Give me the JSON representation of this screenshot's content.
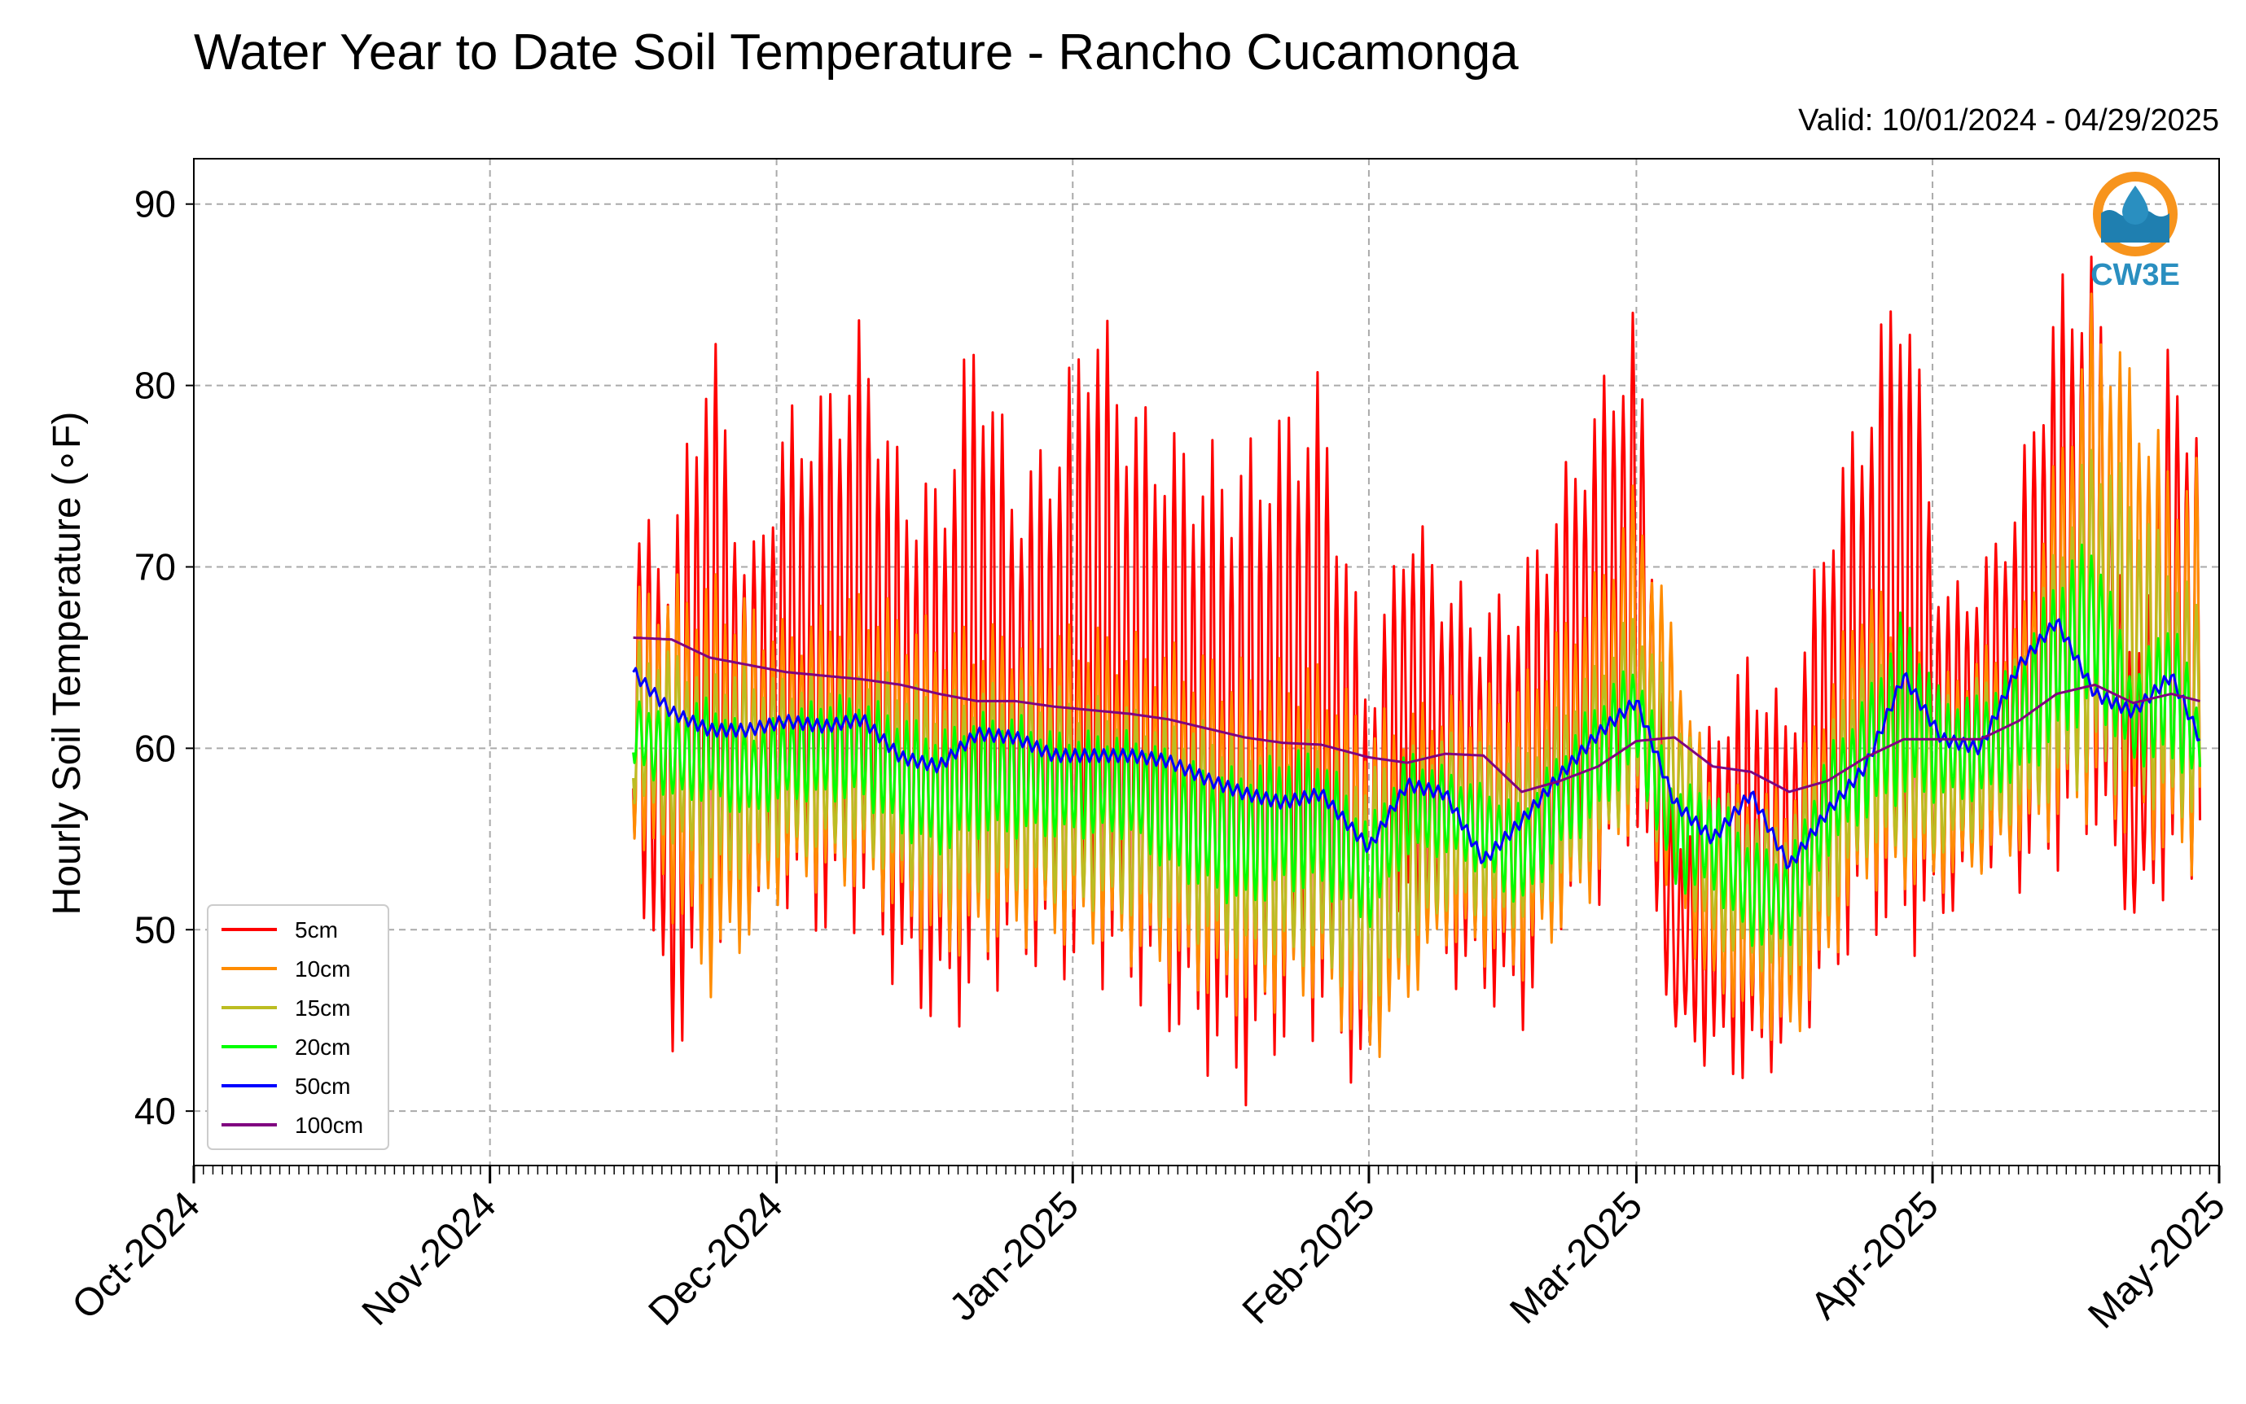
{
  "chart_data": {
    "type": "line",
    "title": "Water Year to Date Soil Temperature - Rancho Cucamonga",
    "subtitle": "Valid: 10/01/2024 - 04/29/2025",
    "ylabel": "Hourly Soil Temperature (∘F)",
    "xlabel": "",
    "xlim": [
      "2024-10-01",
      "2025-05-01"
    ],
    "ylim": [
      37,
      92.5
    ],
    "yticks": [
      40,
      50,
      60,
      70,
      80,
      90
    ],
    "xticks": [
      {
        "date": "2024-10-01",
        "label": "Oct-2024"
      },
      {
        "date": "2024-11-01",
        "label": "Nov-2024"
      },
      {
        "date": "2024-12-01",
        "label": "Dec-2024"
      },
      {
        "date": "2025-01-01",
        "label": "Jan-2025"
      },
      {
        "date": "2025-02-01",
        "label": "Feb-2025"
      },
      {
        "date": "2025-03-01",
        "label": "Mar-2025"
      },
      {
        "date": "2025-04-01",
        "label": "Apr-2025"
      },
      {
        "date": "2025-05-01",
        "label": "May-2025"
      }
    ],
    "grid": true,
    "legend_position": "lower-left",
    "series": [
      {
        "name": "5cm",
        "color": "#ff0000",
        "x": [
          "2024-11-16",
          "2024-11-20",
          "2024-11-24",
          "2024-11-28",
          "2024-12-02",
          "2024-12-06",
          "2024-12-10",
          "2024-12-14",
          "2024-12-18",
          "2024-12-22",
          "2024-12-26",
          "2024-12-30",
          "2025-01-03",
          "2025-01-07",
          "2025-01-11",
          "2025-01-15",
          "2025-01-19",
          "2025-01-23",
          "2025-01-27",
          "2025-02-01",
          "2025-02-05",
          "2025-02-09",
          "2025-02-13",
          "2025-02-17",
          "2025-02-21",
          "2025-02-25",
          "2025-03-01",
          "2025-03-05",
          "2025-03-09",
          "2025-03-13",
          "2025-03-17",
          "2025-03-21",
          "2025-03-25",
          "2025-03-29",
          "2025-04-02",
          "2025-04-06",
          "2025-04-10",
          "2025-04-14",
          "2025-04-18",
          "2025-04-22",
          "2025-04-26",
          "2025-04-29"
        ],
        "max": [
          73,
          72,
          85,
          70,
          79,
          80,
          84,
          76,
          75,
          85,
          75,
          78,
          86,
          80,
          78,
          77,
          77,
          79,
          81,
          64,
          74,
          70,
          68,
          70,
          75,
          80,
          85,
          54,
          62,
          66,
          62,
          74,
          80,
          89,
          69,
          70,
          75,
          86,
          88,
          63,
          84,
          77
        ],
        "min": [
          54,
          42,
          47,
          50,
          51,
          49,
          50,
          46,
          44,
          45,
          48,
          47,
          47,
          46,
          44,
          42,
          40,
          43,
          44,
          40,
          50,
          47,
          46,
          44,
          50,
          51,
          55,
          44,
          42,
          41,
          43,
          46,
          50,
          48,
          50,
          53,
          52,
          53,
          55,
          50,
          52,
          52
        ]
      },
      {
        "name": "10cm",
        "color": "#ff8c00",
        "x": [
          "2024-11-16",
          "2024-11-24",
          "2024-12-02",
          "2024-12-10",
          "2024-12-18",
          "2024-12-26",
          "2025-01-03",
          "2025-01-11",
          "2025-01-19",
          "2025-01-27",
          "2025-02-01",
          "2025-02-09",
          "2025-02-17",
          "2025-02-25",
          "2025-03-01",
          "2025-03-09",
          "2025-03-17",
          "2025-03-25",
          "2025-04-02",
          "2025-04-10",
          "2025-04-18",
          "2025-04-26",
          "2025-04-29"
        ],
        "max": [
          69,
          70,
          67,
          69,
          67,
          67,
          67,
          66,
          65,
          65,
          62,
          63,
          64,
          70,
          75,
          58,
          58,
          70,
          64,
          67,
          86,
          76,
          76
        ],
        "min": [
          55,
          46,
          52,
          52,
          48,
          49,
          49,
          47,
          45,
          46,
          42,
          49,
          47,
          52,
          56,
          46,
          43,
          52,
          52,
          54,
          56,
          53,
          53
        ]
      },
      {
        "name": "15cm",
        "color": "#bcbd22",
        "x": [
          "2024-11-16",
          "2024-11-24",
          "2024-12-02",
          "2024-12-10",
          "2024-12-18",
          "2024-12-26",
          "2025-01-03",
          "2025-01-11",
          "2025-01-19",
          "2025-01-27",
          "2025-02-01",
          "2025-02-09",
          "2025-02-17",
          "2025-02-25",
          "2025-03-01",
          "2025-03-09",
          "2025-03-17",
          "2025-03-25",
          "2025-04-02",
          "2025-04-10",
          "2025-04-18",
          "2025-04-26",
          "2025-04-29"
        ],
        "max": [
          66,
          65,
          64,
          65,
          63,
          64,
          63,
          62,
          61,
          61,
          59,
          61,
          60,
          65,
          68,
          58,
          56,
          66,
          63,
          65,
          78,
          71,
          68
        ],
        "min": [
          57,
          52,
          54,
          54,
          51,
          52,
          51,
          50,
          48,
          48,
          45,
          51,
          50,
          54,
          57,
          49,
          47,
          54,
          54,
          56,
          58,
          56,
          56
        ]
      },
      {
        "name": "20cm",
        "color": "#00ff00",
        "x": [
          "2024-11-16",
          "2024-11-20",
          "2024-11-24",
          "2024-11-28",
          "2024-12-02",
          "2024-12-06",
          "2024-12-10",
          "2024-12-14",
          "2024-12-18",
          "2024-12-22",
          "2024-12-26",
          "2024-12-30",
          "2025-01-03",
          "2025-01-07",
          "2025-01-11",
          "2025-01-15",
          "2025-01-19",
          "2025-01-23",
          "2025-01-27",
          "2025-02-01",
          "2025-02-05",
          "2025-02-09",
          "2025-02-13",
          "2025-02-17",
          "2025-02-21",
          "2025-02-25",
          "2025-03-01",
          "2025-03-05",
          "2025-03-09",
          "2025-03-13",
          "2025-03-17",
          "2025-03-21",
          "2025-03-25",
          "2025-03-29",
          "2025-04-02",
          "2025-04-06",
          "2025-04-10",
          "2025-04-14",
          "2025-04-18",
          "2025-04-22",
          "2025-04-26",
          "2025-04-29"
        ],
        "max": [
          63,
          62,
          63,
          61,
          62,
          63,
          63,
          62,
          61,
          62,
          62,
          61,
          61,
          61,
          60,
          59,
          59,
          60,
          60,
          56,
          60,
          59,
          58,
          57,
          60,
          63,
          65,
          58,
          58,
          55,
          54,
          60,
          63,
          68,
          63,
          63,
          65,
          70,
          72,
          64,
          68,
          62
        ],
        "min": [
          59,
          57,
          57,
          56,
          57,
          57,
          57,
          55,
          54,
          55,
          55,
          55,
          55,
          55,
          53,
          52,
          51,
          52,
          52,
          50,
          54,
          54,
          53,
          51,
          54,
          56,
          59,
          52,
          52,
          49,
          49,
          54,
          56,
          57,
          57,
          57,
          58,
          60,
          62,
          59,
          59,
          58
        ]
      },
      {
        "name": "50cm",
        "color": "#0000ff",
        "x": [
          "2024-11-16",
          "2024-11-20",
          "2024-11-24",
          "2024-11-28",
          "2024-12-02",
          "2024-12-06",
          "2024-12-10",
          "2024-12-14",
          "2024-12-18",
          "2024-12-22",
          "2024-12-26",
          "2024-12-30",
          "2025-01-03",
          "2025-01-07",
          "2025-01-11",
          "2025-01-15",
          "2025-01-19",
          "2025-01-23",
          "2025-01-27",
          "2025-02-01",
          "2025-02-05",
          "2025-02-09",
          "2025-02-13",
          "2025-02-17",
          "2025-02-21",
          "2025-02-25",
          "2025-03-01",
          "2025-03-05",
          "2025-03-09",
          "2025-03-13",
          "2025-03-17",
          "2025-03-21",
          "2025-03-25",
          "2025-03-29",
          "2025-04-02",
          "2025-04-06",
          "2025-04-10",
          "2025-04-14",
          "2025-04-18",
          "2025-04-22",
          "2025-04-26",
          "2025-04-29"
        ],
        "values": [
          64.2,
          62.0,
          61.0,
          61.0,
          61.5,
          61.2,
          61.6,
          59.5,
          59.0,
          60.8,
          60.6,
          59.6,
          59.6,
          59.6,
          59.3,
          58.3,
          57.5,
          57.0,
          57.5,
          54.5,
          58.0,
          57.5,
          53.8,
          56.0,
          58.5,
          60.8,
          62.6,
          57.0,
          55.0,
          57.5,
          53.5,
          56.5,
          59.0,
          64.0,
          60.5,
          60.0,
          64.5,
          67.0,
          63.0,
          62.0,
          64.0,
          60.5
        ]
      },
      {
        "name": "100cm",
        "color": "#800080",
        "x": [
          "2024-11-16",
          "2024-11-20",
          "2024-11-24",
          "2024-11-28",
          "2024-12-02",
          "2024-12-06",
          "2024-12-10",
          "2024-12-14",
          "2024-12-18",
          "2024-12-22",
          "2024-12-26",
          "2024-12-30",
          "2025-01-03",
          "2025-01-07",
          "2025-01-11",
          "2025-01-15",
          "2025-01-19",
          "2025-01-23",
          "2025-01-27",
          "2025-02-01",
          "2025-02-05",
          "2025-02-09",
          "2025-02-13",
          "2025-02-17",
          "2025-02-21",
          "2025-02-25",
          "2025-03-01",
          "2025-03-05",
          "2025-03-09",
          "2025-03-13",
          "2025-03-17",
          "2025-03-21",
          "2025-03-25",
          "2025-03-29",
          "2025-04-02",
          "2025-04-06",
          "2025-04-10",
          "2025-04-14",
          "2025-04-18",
          "2025-04-22",
          "2025-04-26",
          "2025-04-29"
        ],
        "values": [
          66.1,
          66.0,
          65.0,
          64.6,
          64.2,
          64.0,
          63.8,
          63.5,
          63.0,
          62.6,
          62.6,
          62.3,
          62.1,
          61.9,
          61.6,
          61.1,
          60.6,
          60.3,
          60.2,
          59.5,
          59.2,
          59.7,
          59.6,
          57.6,
          58.2,
          59.0,
          60.4,
          60.6,
          59.0,
          58.7,
          57.6,
          58.2,
          59.5,
          60.5,
          60.5,
          60.5,
          61.5,
          63.0,
          63.5,
          62.5,
          63.0,
          62.6
        ]
      }
    ]
  },
  "logo": {
    "text": "CW3E",
    "ring_color": "#f7941d",
    "wave_color": "#1f7fb0",
    "text_color": "#2a8fc0"
  }
}
